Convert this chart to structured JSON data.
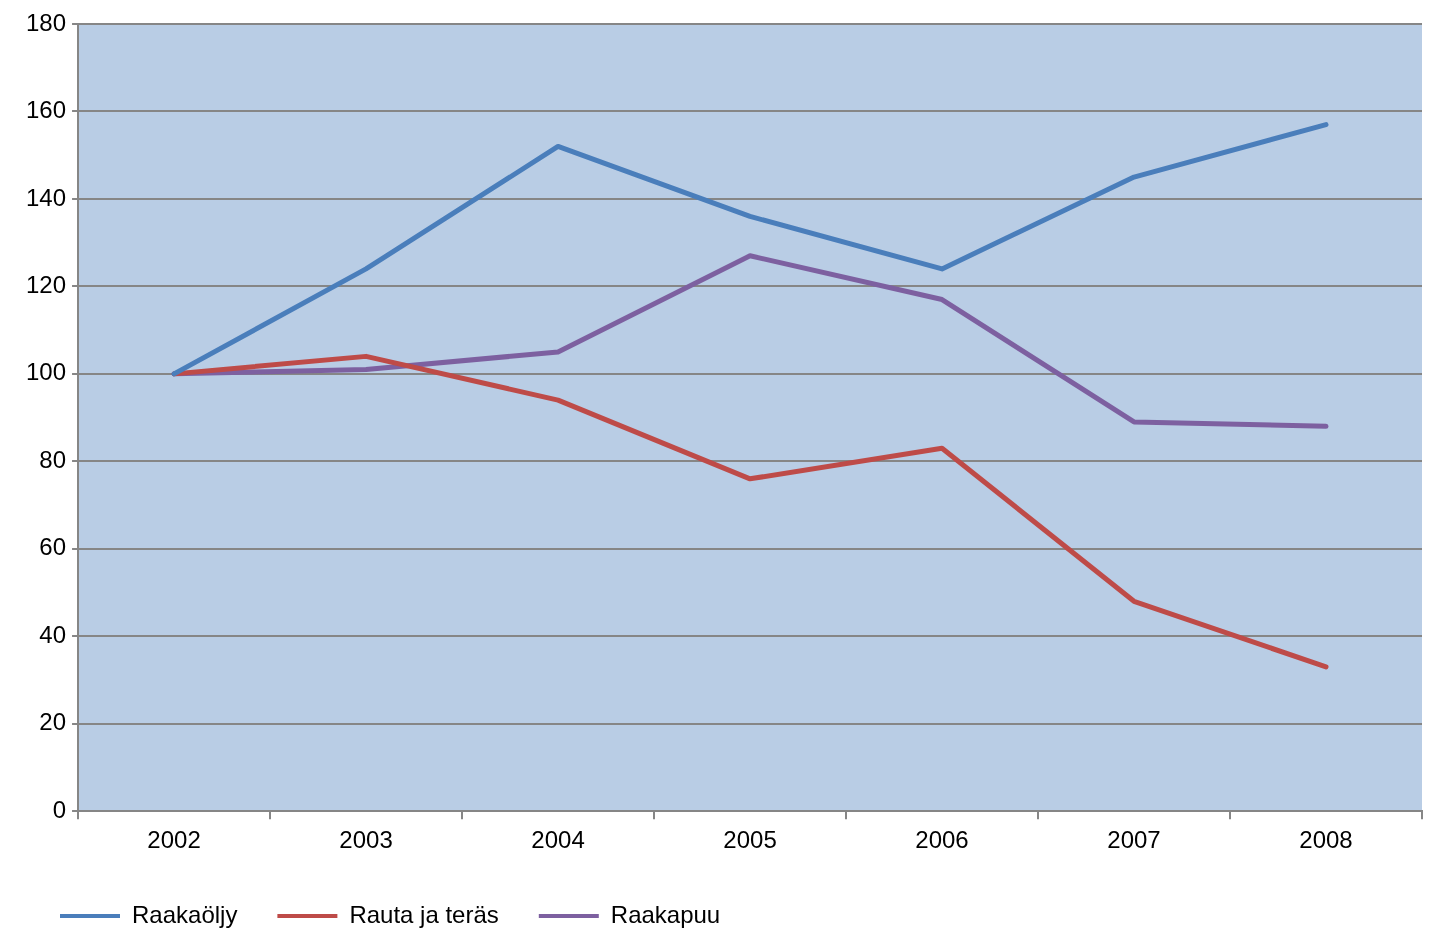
{
  "chart_data": {
    "type": "line",
    "categories": [
      "2002",
      "2003",
      "2004",
      "2005",
      "2006",
      "2007",
      "2008"
    ],
    "series": [
      {
        "name": "Raakaöljy",
        "color": "#4a7ebb",
        "values": [
          100,
          124,
          152,
          136,
          124,
          145,
          157
        ]
      },
      {
        "name": "Rauta ja teräs",
        "color": "#be4b48",
        "values": [
          100,
          104,
          94,
          76,
          83,
          48,
          33
        ]
      },
      {
        "name": "Raakapuu",
        "color": "#7d60a0",
        "values": [
          100,
          101,
          105,
          127,
          117,
          89,
          88
        ]
      }
    ],
    "ylim": [
      0,
      180
    ],
    "yticks": [
      0,
      20,
      40,
      60,
      80,
      100,
      120,
      140,
      160,
      180
    ],
    "grid": "y",
    "legend": "bottom",
    "marker": "none",
    "line_style": "solid"
  }
}
